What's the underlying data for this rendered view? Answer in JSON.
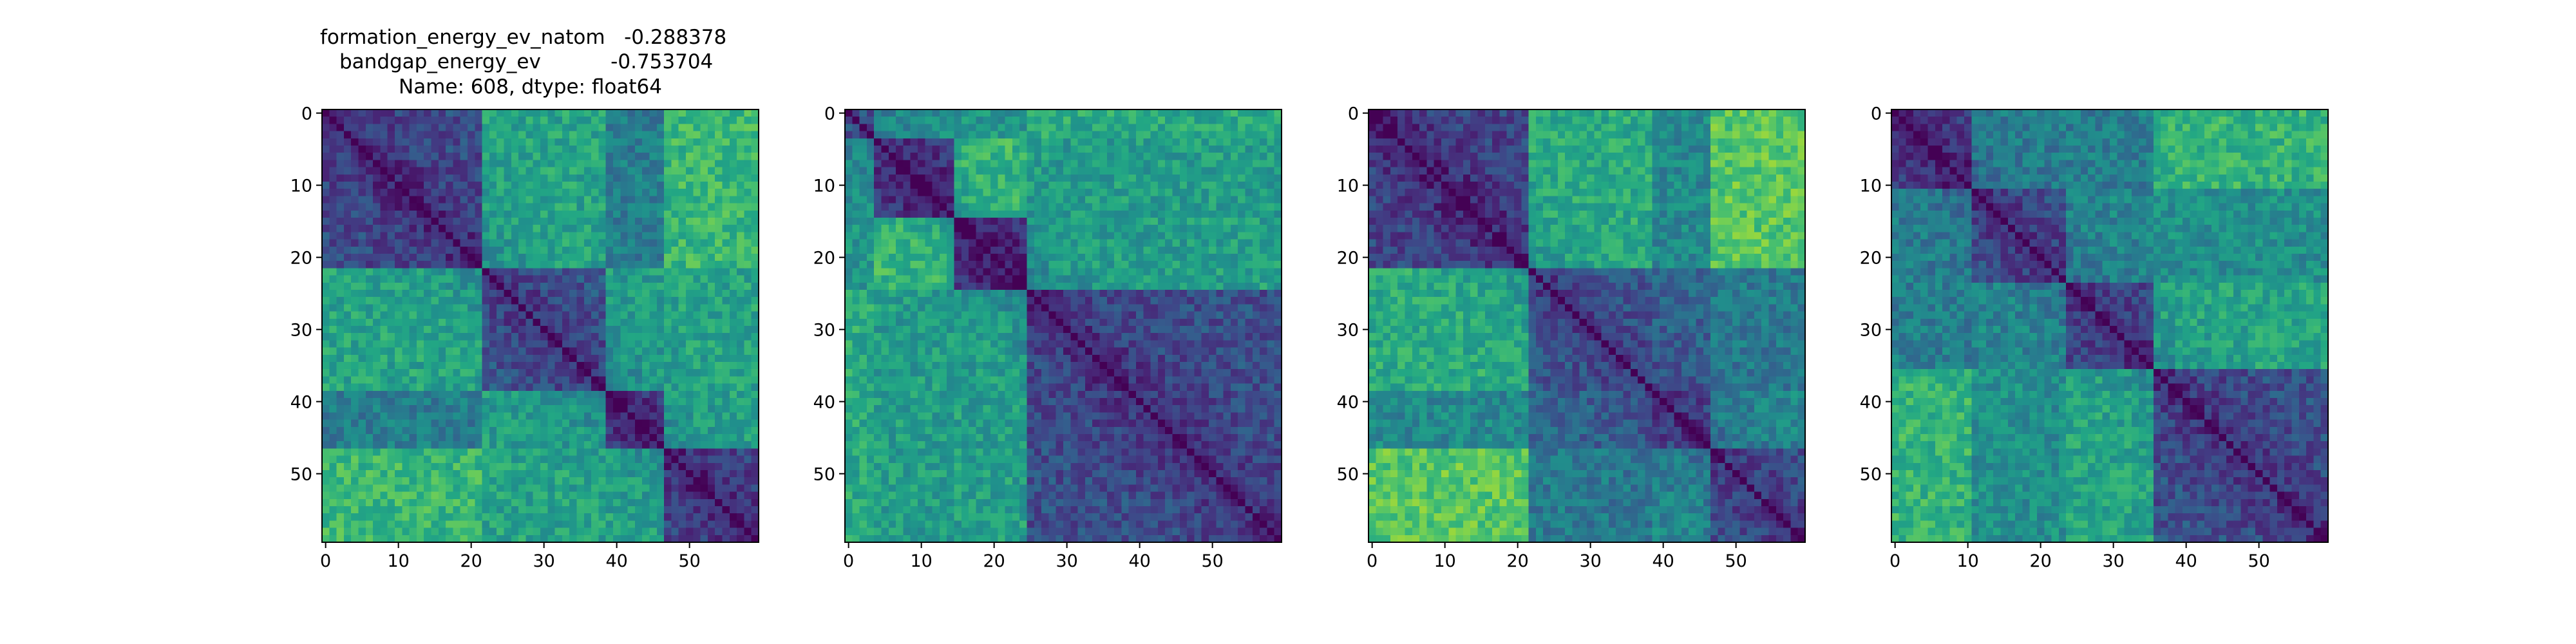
{
  "figure": {
    "title_lines": [
      "formation_energy_ev_natom   -0.288378",
      "bandgap_energy_ev           -0.753704",
      "Name: 608, dtype: float64"
    ]
  },
  "chart_data": [
    {
      "type": "heatmap",
      "matrix_size": 60,
      "colormap": "viridis",
      "diagonal": 0,
      "block_boundaries": [
        22,
        39,
        47
      ],
      "xticks": [
        0,
        10,
        20,
        30,
        40,
        50
      ],
      "yticks": [
        0,
        10,
        20,
        30,
        40,
        50
      ],
      "xtick_labels": [
        "0",
        "10",
        "20",
        "30",
        "40",
        "50"
      ],
      "ytick_labels": [
        "0",
        "10",
        "20",
        "30",
        "40",
        "50"
      ],
      "xlim": [
        -0.5,
        59.5
      ],
      "ylim": [
        59.5,
        -0.5
      ],
      "grid": false
    },
    {
      "type": "heatmap",
      "matrix_size": 60,
      "colormap": "viridis",
      "diagonal": 0,
      "block_boundaries": [
        4,
        15,
        25
      ],
      "xticks": [
        0,
        10,
        20,
        30,
        40,
        50
      ],
      "yticks": [
        0,
        10,
        20,
        30,
        40,
        50
      ],
      "xtick_labels": [
        "0",
        "10",
        "20",
        "30",
        "40",
        "50"
      ],
      "ytick_labels": [
        "0",
        "10",
        "20",
        "30",
        "40",
        "50"
      ],
      "xlim": [
        -0.5,
        59.5
      ],
      "ylim": [
        59.5,
        -0.5
      ],
      "grid": false
    },
    {
      "type": "heatmap",
      "matrix_size": 60,
      "colormap": "viridis",
      "diagonal": 0,
      "block_boundaries": [
        22,
        39,
        47
      ],
      "xticks": [
        0,
        10,
        20,
        30,
        40,
        50
      ],
      "yticks": [
        0,
        10,
        20,
        30,
        40,
        50
      ],
      "xtick_labels": [
        "0",
        "10",
        "20",
        "30",
        "40",
        "50"
      ],
      "ytick_labels": [
        "0",
        "10",
        "20",
        "30",
        "40",
        "50"
      ],
      "xlim": [
        -0.5,
        59.5
      ],
      "ylim": [
        59.5,
        -0.5
      ],
      "grid": false
    },
    {
      "type": "heatmap",
      "matrix_size": 60,
      "colormap": "viridis",
      "diagonal": 0,
      "block_boundaries": [
        11,
        24,
        36
      ],
      "xticks": [
        0,
        10,
        20,
        30,
        40,
        50
      ],
      "yticks": [
        0,
        10,
        20,
        30,
        40,
        50
      ],
      "xtick_labels": [
        "0",
        "10",
        "20",
        "30",
        "40",
        "50"
      ],
      "ytick_labels": [
        "0",
        "10",
        "20",
        "30",
        "40",
        "50"
      ],
      "xlim": [
        -0.5,
        59.5
      ],
      "ylim": [
        59.5,
        -0.5
      ],
      "grid": false
    }
  ]
}
